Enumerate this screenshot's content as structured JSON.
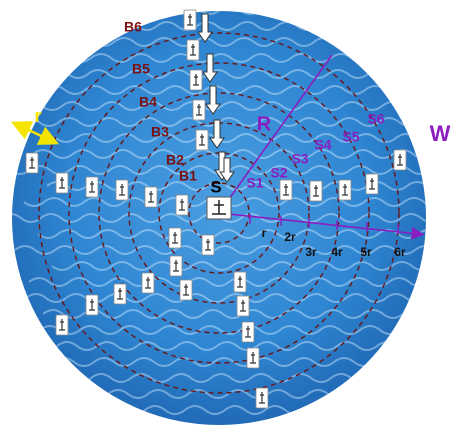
{
  "source_label": "S",
  "radius_label": "R",
  "wind_label": "W",
  "ring_width_label": "r",
  "ring_labels": [
    "B1",
    "B2",
    "B3",
    "B4",
    "B5",
    "B6"
  ],
  "sensor_labels": [
    "S1",
    "S2",
    "S3",
    "S4",
    "S5",
    "S6"
  ],
  "distance_labels": [
    "r",
    "2r",
    "3r",
    "4r",
    "5r",
    "6r"
  ]
}
